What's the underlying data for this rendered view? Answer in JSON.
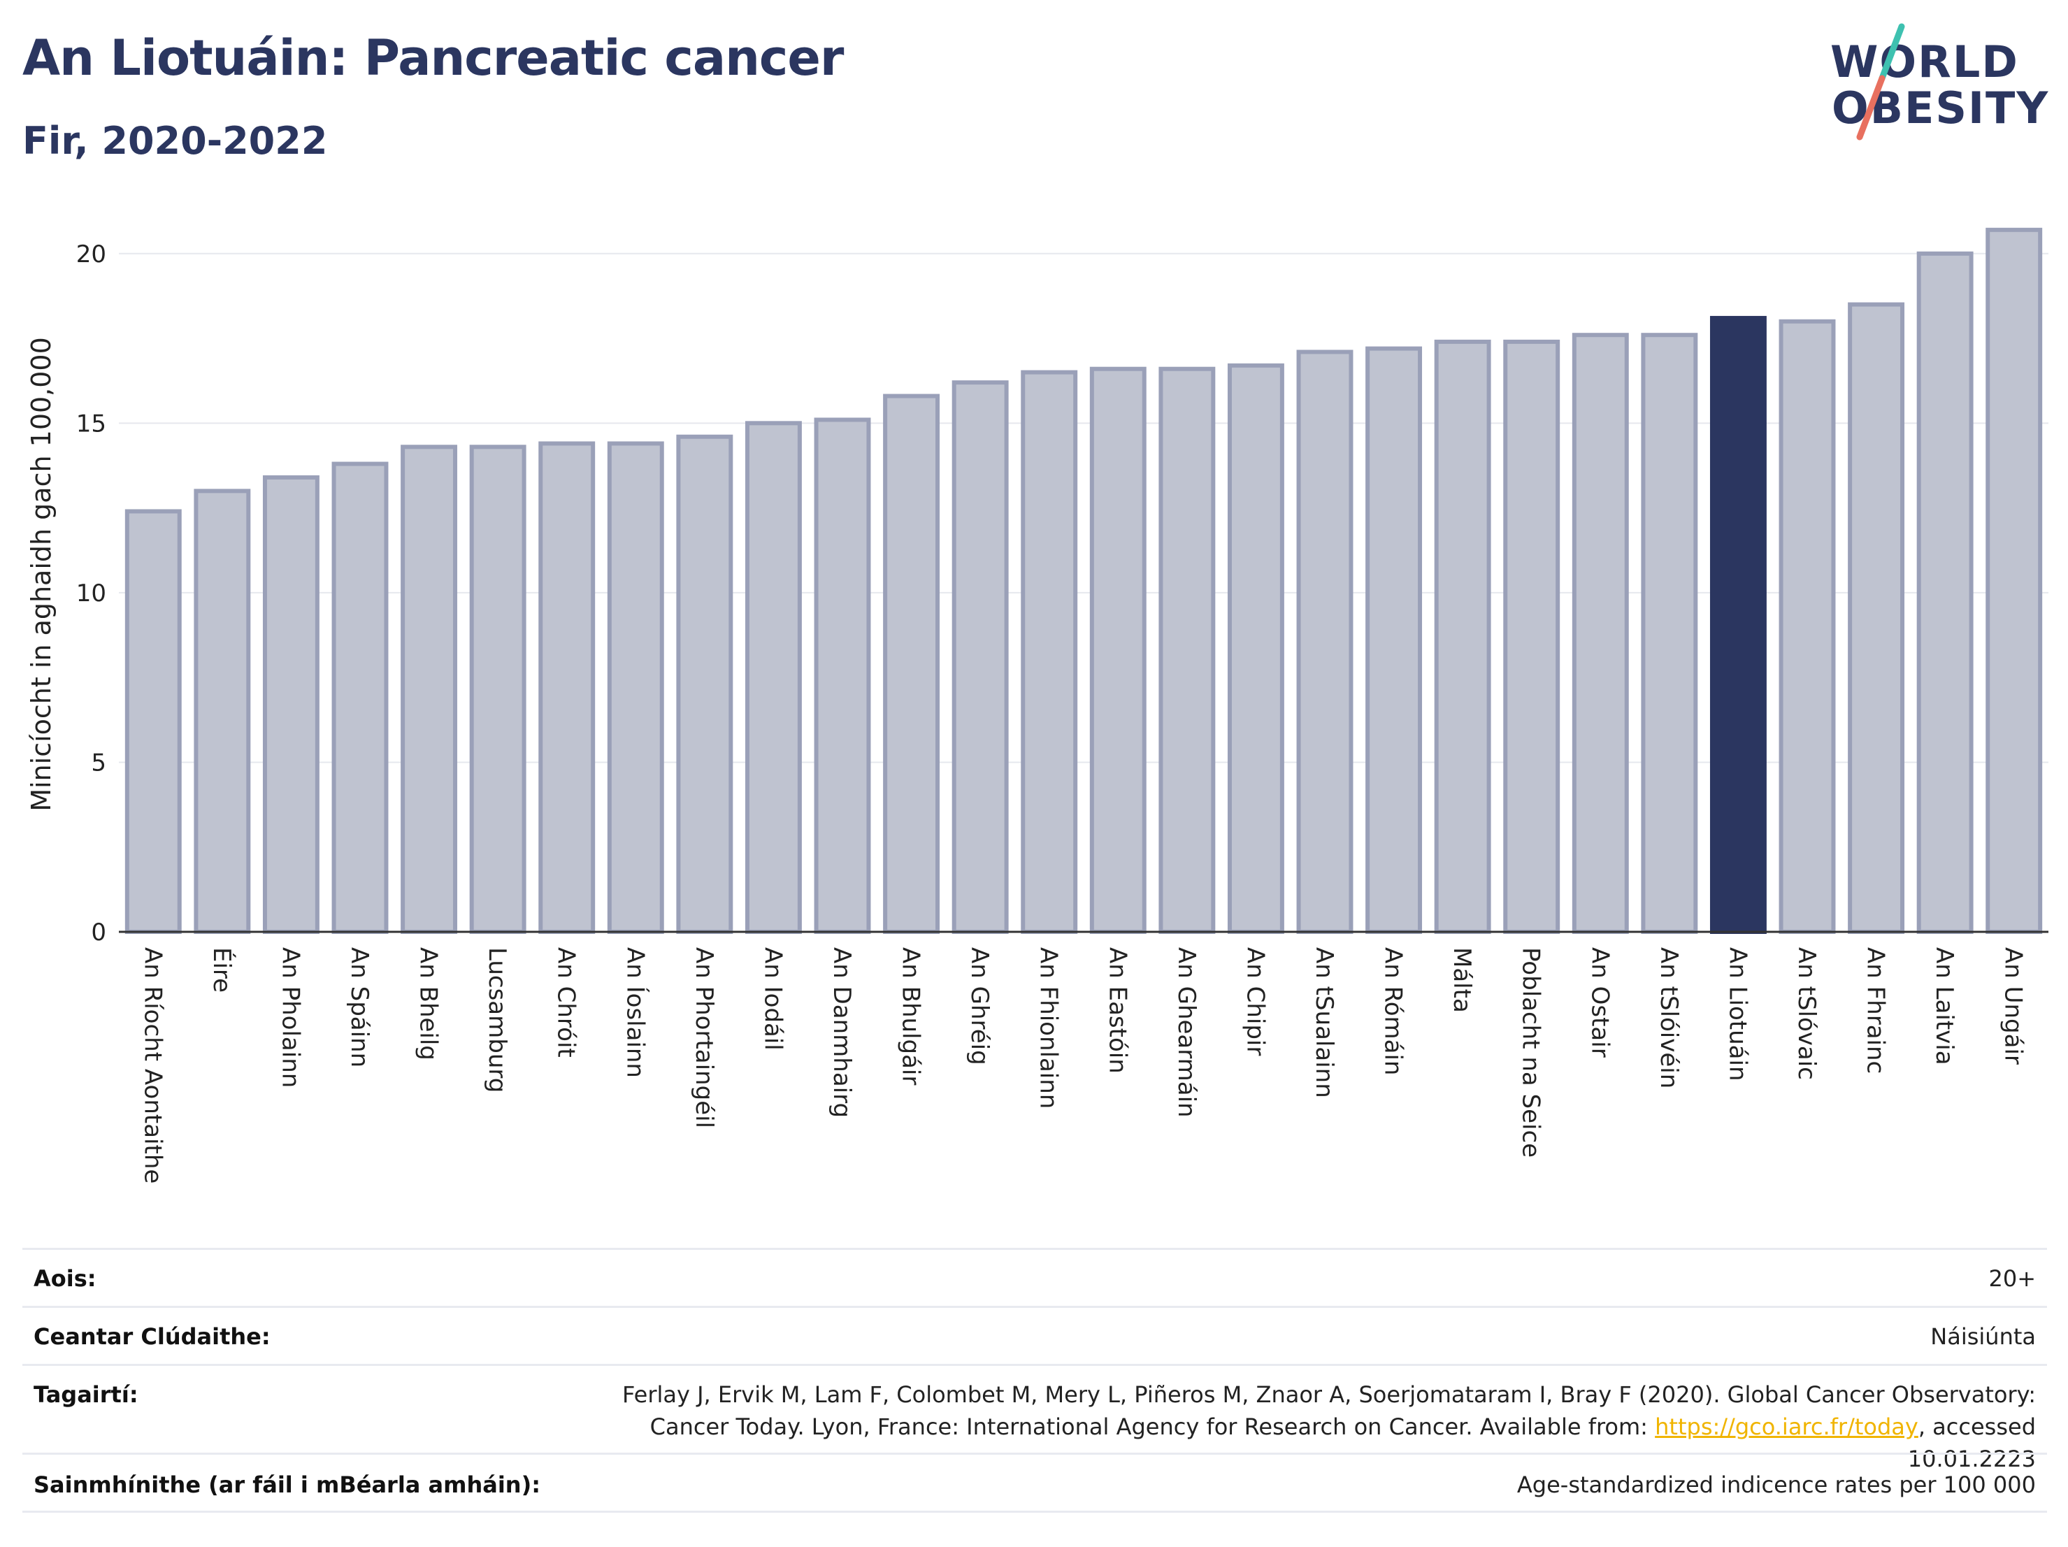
{
  "header": {
    "title": "An Liotuáin: Pancreatic cancer",
    "subtitle": "Fir, 2020-2022"
  },
  "logo": {
    "line1": "WORLD",
    "line2": "OBESITY",
    "colors": {
      "text": "#2b3660",
      "slash_top": "#3ec1b0",
      "slash_bottom": "#e8705f"
    }
  },
  "chart_data": {
    "type": "bar",
    "ylabel": "Minicíocht in aghaidh gach 100,000",
    "xlabel": "",
    "ylim": [
      0,
      21.5
    ],
    "yticks": [
      0,
      5,
      10,
      15,
      20
    ],
    "grid": true,
    "highlight": "An Liotuáin",
    "colors": {
      "bar": "#bfc3d0",
      "bar_border": "#9aa0b8",
      "highlight": "#2b3660"
    },
    "categories": [
      "An Ríocht Aontaithe",
      "Éire",
      "An Pholainn",
      "An Spáinn",
      "An Bheilg",
      "Lucsamburg",
      "An Chróit",
      "An Íoslainn",
      "An Phortaingéil",
      "An Iodáil",
      "An Danmhairg",
      "An Bhulgáir",
      "An Ghréig",
      "An Fhionlainn",
      "An Eastóin",
      "An Ghearmáin",
      "An Chipir",
      "An tSualainn",
      "An Rómáin",
      "Málta",
      "Poblacht na Seice",
      "An Ostair",
      "An tSlóivéin",
      "An Liotuáin",
      "An tSlóvaic",
      "An Fhrainc",
      "An Laitvia",
      "An Ungáir"
    ],
    "values": [
      12.4,
      13.0,
      13.4,
      13.8,
      14.3,
      14.3,
      14.4,
      14.4,
      14.6,
      15.0,
      15.1,
      15.8,
      16.2,
      16.5,
      16.6,
      16.6,
      16.7,
      17.1,
      17.2,
      17.4,
      17.4,
      17.6,
      17.6,
      18.1,
      18.0,
      18.5,
      20.0,
      20.7
    ]
  },
  "info": {
    "age_label": "Aois:",
    "age_value": "20+",
    "area_label": "Ceantar Clúdaithe:",
    "area_value": "Náisiúnta",
    "ref_label": "Tagairtí:",
    "ref_text_1": "Ferlay J, Ervik M, Lam F, Colombet M, Mery L, Piñeros M, Znaor A, Soerjomataram I, Bray F (2020). Global Cancer Observatory: Cancer Today. Lyon, France: International Agency for Research on Cancer. Available from: ",
    "ref_link": "https://gco.iarc.fr/today",
    "ref_text_2": ", accessed 10.01.2223",
    "def_label": "Sainmhínithe (ar fáil i mBéarla amháin):",
    "def_value": "Age-standardized indicence rates per 100 000"
  }
}
